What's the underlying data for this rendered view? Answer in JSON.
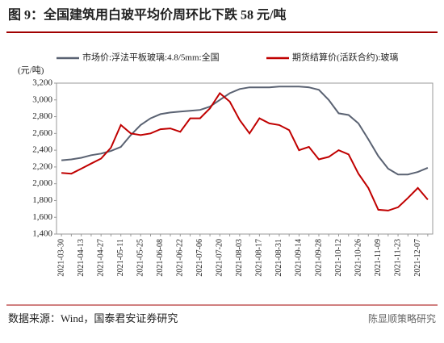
{
  "chart_data": {
    "type": "line",
    "title": "图 9：全国建筑用白玻平均价周环比下跌 58 元/吨",
    "y_unit": "(元/吨)",
    "source": "数据来源：Wind，国泰君安证券研究",
    "watermark": "陈显顺策略研究",
    "categories": [
      "2021-03-30",
      null,
      "2021-04-13",
      null,
      "2021-04-27",
      null,
      "2021-05-11",
      null,
      "2021-05-25",
      null,
      "2021-06-08",
      null,
      "2021-06-22",
      null,
      "2021-07-06",
      null,
      "2021-07-20",
      null,
      "2021-08-03",
      null,
      "2021-08-17",
      null,
      "2021-08-31",
      null,
      "2021-09-14",
      null,
      "2021-09-28",
      null,
      "2021-10-12",
      null,
      "2021-10-26",
      null,
      "2021-11-09",
      null,
      "2021-11-23",
      null,
      "2021-12-07",
      null
    ],
    "series": [
      {
        "name": "市场价:浮法平板玻璃:4.8/5mm:全国",
        "color": "#5a6272",
        "values": [
          2280,
          2290,
          2310,
          2340,
          2360,
          2390,
          2440,
          2580,
          2700,
          2780,
          2830,
          2850,
          2860,
          2870,
          2880,
          2920,
          3000,
          3080,
          3130,
          3150,
          3150,
          3150,
          3160,
          3160,
          3160,
          3150,
          3120,
          3000,
          2840,
          2820,
          2720,
          2530,
          2330,
          2180,
          2110,
          2110,
          2140,
          2190
        ]
      },
      {
        "name": "期货结算价(活跃合约):玻璃",
        "color": "#c00000",
        "values": [
          2130,
          2120,
          2180,
          2240,
          2300,
          2430,
          2700,
          2600,
          2580,
          2600,
          2650,
          2660,
          2620,
          2780,
          2780,
          2900,
          3080,
          2980,
          2760,
          2600,
          2780,
          2720,
          2700,
          2640,
          2400,
          2440,
          2290,
          2320,
          2400,
          2350,
          2120,
          1950,
          1690,
          1680,
          1720,
          1830,
          1950,
          1810
        ]
      }
    ],
    "ylim": [
      1400,
      3200
    ],
    "yticks": [
      {
        "value": 1400,
        "label": "1,400"
      },
      {
        "value": 1600,
        "label": "1,600"
      },
      {
        "value": 1800,
        "label": "1,800"
      },
      {
        "value": 2000,
        "label": "2,000"
      },
      {
        "value": 2200,
        "label": "2,200"
      },
      {
        "value": 2400,
        "label": "2,400"
      },
      {
        "value": 2600,
        "label": "2,600"
      },
      {
        "value": 2800,
        "label": "2,800"
      },
      {
        "value": 3000,
        "label": "3,000"
      },
      {
        "value": 3200,
        "label": "3,200"
      }
    ]
  }
}
